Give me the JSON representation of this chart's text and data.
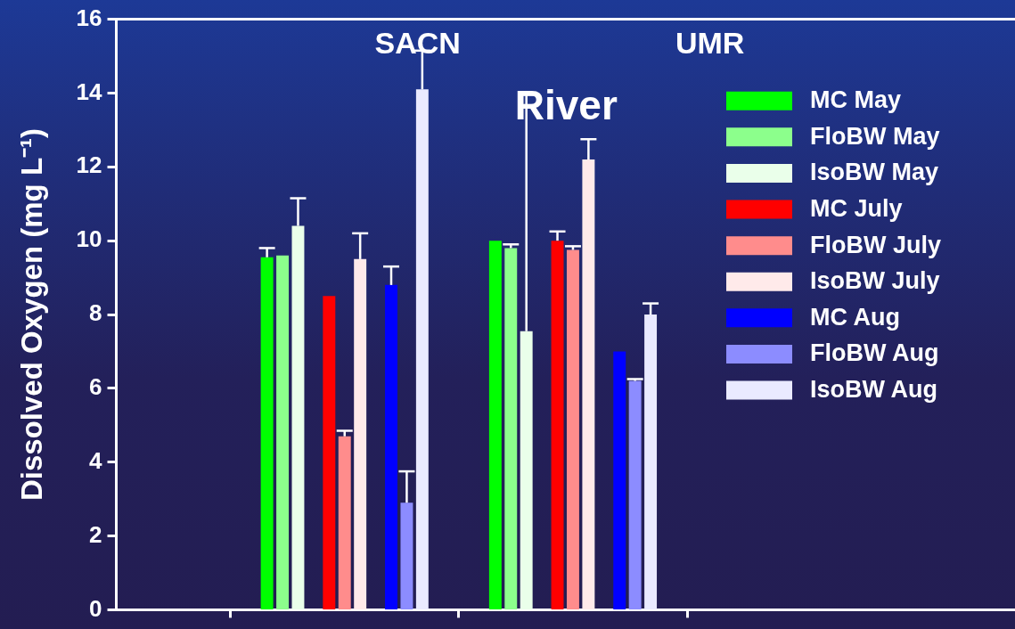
{
  "chart_data": {
    "type": "bar",
    "ylabel": "Dissolved Oxygen (mg L⁻¹)",
    "categories": [
      null,
      null
    ],
    "ylim": [
      0,
      16
    ],
    "yticks": [
      0,
      2,
      4,
      6,
      8,
      10,
      12,
      14,
      16
    ],
    "grid": false,
    "legend": "right",
    "tick_labels": "y",
    "annotations": [
      "SACN",
      "UMR",
      "River"
    ],
    "series": [
      {
        "name": "MC May",
        "color": "#00ff00",
        "values": [
          9.55,
          10.0
        ],
        "errors": [
          [
            9.55,
            9.8
          ],
          null
        ]
      },
      {
        "name": "FloBW May",
        "color": "#8cff8c",
        "values": [
          9.6,
          9.8
        ],
        "errors": [
          null,
          [
            9.8,
            9.9
          ]
        ]
      },
      {
        "name": "IsoBW May",
        "color": "#eaffea",
        "values": [
          10.4,
          7.55
        ],
        "errors": [
          [
            10.4,
            11.15
          ],
          [
            7.55,
            13.95
          ]
        ]
      },
      {
        "name": "MC July",
        "color": "#ff0000",
        "values": [
          8.5,
          10.0
        ],
        "errors": [
          null,
          [
            10.0,
            10.25
          ]
        ]
      },
      {
        "name": "FloBW July",
        "color": "#ff8c8c",
        "values": [
          4.7,
          9.75
        ],
        "errors": [
          [
            4.7,
            4.85
          ],
          [
            9.75,
            9.85
          ]
        ]
      },
      {
        "name": "IsoBW July",
        "color": "#ffeaea",
        "values": [
          9.5,
          12.2
        ],
        "errors": [
          [
            9.5,
            10.2
          ],
          [
            12.2,
            12.75
          ]
        ]
      },
      {
        "name": "MC Aug",
        "color": "#0000ff",
        "values": [
          8.8,
          7.0
        ],
        "errors": [
          [
            8.8,
            9.3
          ],
          null
        ]
      },
      {
        "name": "FloBW Aug",
        "color": "#8c8cff",
        "values": [
          2.9,
          6.2
        ],
        "errors": [
          [
            2.9,
            3.75
          ],
          [
            6.2,
            6.25
          ]
        ]
      },
      {
        "name": "IsoBW Aug",
        "color": "#eaeaff",
        "values": [
          14.1,
          8.0
        ],
        "errors": [
          [
            14.1,
            15.15
          ],
          [
            8.0,
            8.3
          ]
        ]
      }
    ]
  }
}
